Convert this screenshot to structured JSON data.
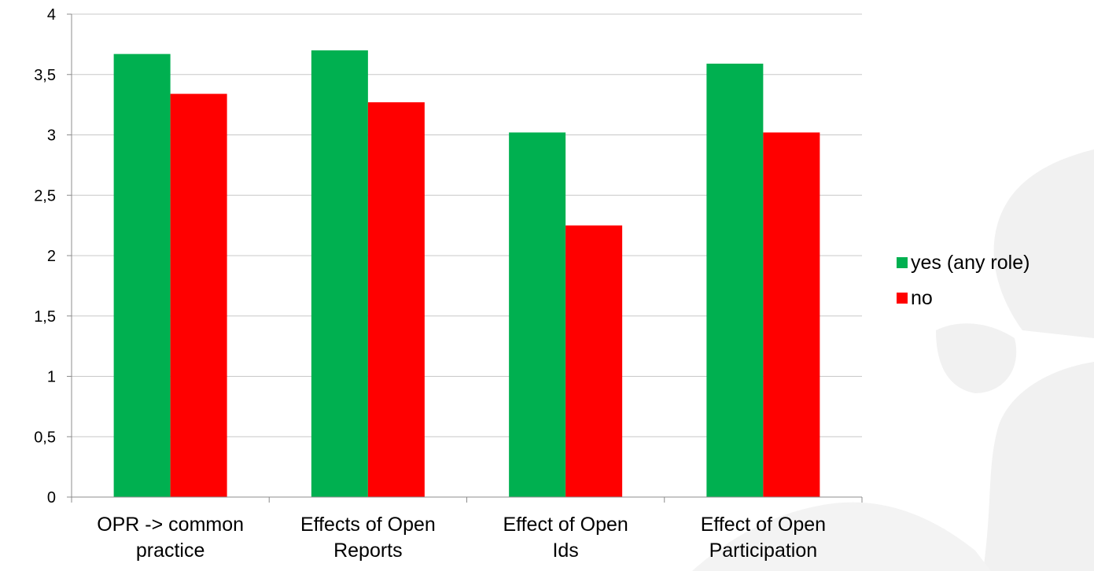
{
  "chart_data": {
    "type": "bar",
    "categories": [
      [
        "OPR -> common",
        "practice"
      ],
      [
        "Effects of Open",
        "Reports"
      ],
      [
        "Effect of Open",
        "Ids"
      ],
      [
        "Effect of Open",
        "Participation"
      ]
    ],
    "series": [
      {
        "name": "yes (any role)",
        "color": "#00b050",
        "values": [
          3.67,
          3.7,
          3.02,
          3.59
        ]
      },
      {
        "name": "no",
        "color": "#ff0000",
        "values": [
          3.34,
          3.27,
          2.25,
          3.02
        ]
      }
    ],
    "ylim": [
      0,
      4
    ],
    "yticks": [
      0,
      0.5,
      1,
      1.5,
      2,
      2.5,
      3,
      3.5,
      4
    ],
    "ytick_labels": [
      "0",
      "0,5",
      "1",
      "1,5",
      "2",
      "2,5",
      "3",
      "3,5",
      "4"
    ],
    "grid": true,
    "legend_position": "right",
    "background_decoration": "light-gray-clover-watermark"
  }
}
